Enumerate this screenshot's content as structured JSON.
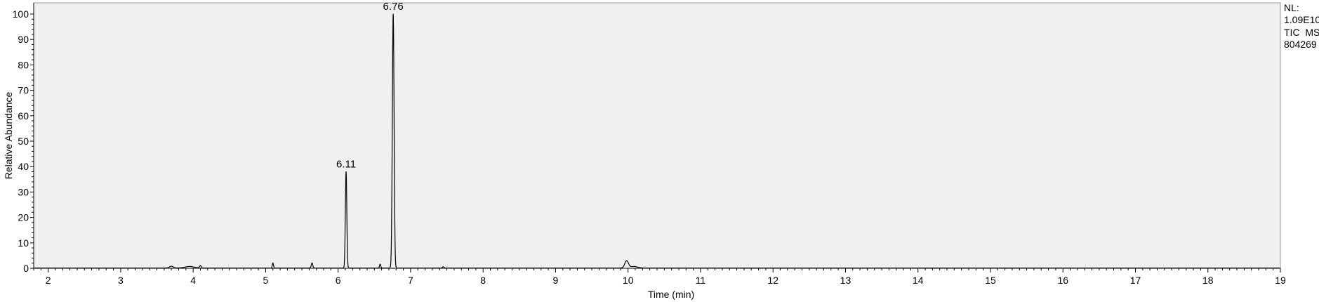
{
  "info": {
    "nl_label": "NL:",
    "nl_value": "1.09E10",
    "trace": "TIC  MS",
    "sample": "804269"
  },
  "colors": {
    "plot_background": "#f0f0f0",
    "trace": "#000000",
    "axis": "#000000"
  },
  "chart_data": {
    "type": "line",
    "xlabel": "Time (min)",
    "ylabel": "Relative Abundance",
    "xlim": [
      1.8,
      19.0
    ],
    "ylim": [
      0,
      100
    ],
    "x_ticks": [
      2,
      3,
      4,
      5,
      6,
      7,
      8,
      9,
      10,
      11,
      12,
      13,
      14,
      15,
      16,
      17,
      18,
      19
    ],
    "y_ticks": [
      0,
      10,
      20,
      30,
      40,
      50,
      60,
      70,
      80,
      90,
      100
    ],
    "grid": false,
    "peaks": [
      {
        "x": 3.7,
        "y": 0.7,
        "w": 0.025
      },
      {
        "x": 3.95,
        "y": 0.6,
        "w": 0.06
      },
      {
        "x": 4.1,
        "y": 0.9,
        "w": 0.012
      },
      {
        "x": 5.1,
        "y": 2.0,
        "w": 0.008
      },
      {
        "x": 5.64,
        "y": 2.0,
        "w": 0.01
      },
      {
        "x": 6.11,
        "y": 38.0,
        "w": 0.01
      },
      {
        "x": 6.58,
        "y": 1.5,
        "w": 0.008
      },
      {
        "x": 6.76,
        "y": 100.0,
        "w": 0.012
      },
      {
        "x": 7.45,
        "y": 0.5,
        "w": 0.01
      },
      {
        "x": 9.98,
        "y": 2.8,
        "w": 0.025
      },
      {
        "x": 10.08,
        "y": 0.6,
        "w": 0.05
      }
    ],
    "annotations": [
      {
        "x": 6.11,
        "y": 38.0,
        "text": "6.11"
      },
      {
        "x": 6.76,
        "y": 100.0,
        "text": "6.76"
      }
    ]
  }
}
